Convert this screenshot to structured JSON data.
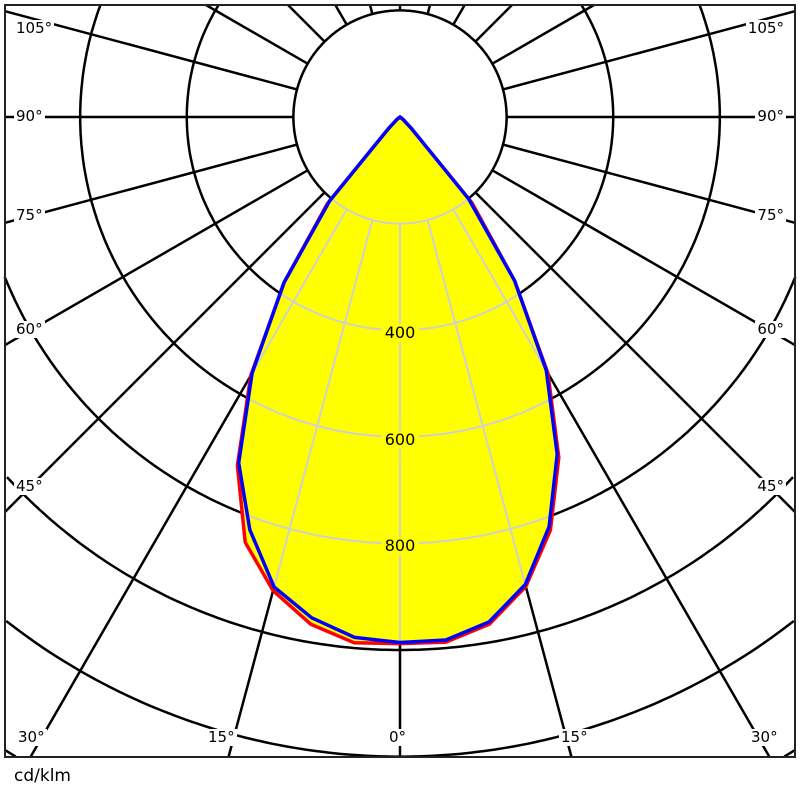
{
  "chart_data": {
    "type": "polar",
    "unit_label": "cd/klm",
    "angle_step_deg": 5,
    "gamma_deg": [
      0,
      5,
      10,
      15,
      20,
      25,
      30,
      35,
      40,
      45,
      50,
      55,
      60,
      65,
      70,
      75,
      80,
      85,
      90,
      95,
      100,
      105,
      110,
      115,
      120,
      125,
      130,
      135,
      140,
      145,
      150,
      155,
      160,
      165,
      170,
      175,
      180
    ],
    "radial_grid_step": 200,
    "radial_tick_labels": [
      "400",
      "600",
      "800"
    ],
    "angle_tick_labels": {
      "bottom": [
        "30°",
        "15°",
        "0°",
        "15°",
        "30°"
      ],
      "left": [
        "105°",
        "90°",
        "75°",
        "60°",
        "45°"
      ],
      "right": [
        "105°",
        "90°",
        "75°",
        "60°",
        "45°"
      ]
    },
    "fill_color": "#ffff00",
    "series": [
      {
        "color": "#ff0000",
        "left": [
          988,
          990,
          966,
          920,
          849,
          722,
          560,
          378,
          212,
          30,
          8,
          2,
          0,
          0,
          0,
          0,
          0,
          0,
          0,
          0,
          0,
          0,
          0,
          0,
          0,
          0,
          0,
          0,
          0,
          0,
          0,
          0,
          0,
          0,
          0,
          0,
          0
        ],
        "right": [
          988,
          989,
          966,
          912,
          825,
          705,
          555,
          375,
          210,
          30,
          8,
          2,
          0,
          0,
          0,
          0,
          0,
          0,
          0,
          0,
          0,
          0,
          0,
          0,
          0,
          0,
          0,
          0,
          0,
          0,
          0,
          0,
          0,
          0,
          0,
          0,
          0
        ]
      },
      {
        "color": "#0000ff",
        "left": [
          986,
          980,
          954,
          913,
          824,
          716,
          555,
          380,
          205,
          30,
          8,
          2,
          0,
          0,
          0,
          0,
          0,
          0,
          0,
          0,
          0,
          0,
          0,
          0,
          0,
          0,
          0,
          0,
          0,
          0,
          0,
          0,
          0,
          0,
          0,
          0,
          0
        ],
        "right": [
          986,
          985,
          962,
          908,
          818,
          698,
          549,
          375,
          200,
          30,
          8,
          2,
          0,
          0,
          0,
          0,
          0,
          0,
          0,
          0,
          0,
          0,
          0,
          0,
          0,
          0,
          0,
          0,
          0,
          0,
          0,
          0,
          0,
          0,
          0,
          0,
          0
        ]
      }
    ]
  }
}
